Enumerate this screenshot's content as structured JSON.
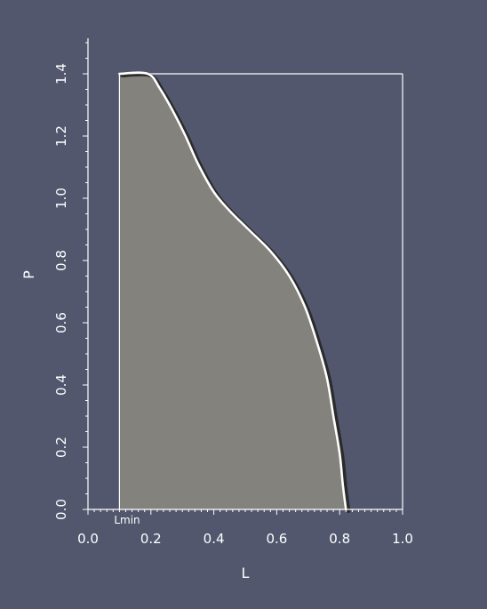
{
  "chart_data": {
    "type": "area",
    "xlabel": "L",
    "ylabel": "P",
    "xlim": [
      0.0,
      1.0
    ],
    "ylim": [
      0.0,
      1.5
    ],
    "x_ticks": [
      0.0,
      0.2,
      0.4,
      0.6,
      0.8,
      1.0
    ],
    "x_tick_labels": [
      "0.0",
      "0.2",
      "0.4",
      "0.6",
      "0.8",
      "1.0"
    ],
    "y_ticks": [
      0.0,
      0.2,
      0.4,
      0.6,
      0.8,
      1.0,
      1.2,
      1.4
    ],
    "y_tick_labels": [
      "0.0",
      "0.2",
      "0.4",
      "0.6",
      "0.8",
      "1.0",
      "1.2",
      "1.4"
    ],
    "annotation": "Lmin",
    "lmin": 0.1,
    "box": {
      "x": [
        0.1,
        1.0
      ],
      "y": [
        0.0,
        1.4
      ]
    },
    "curve": [
      {
        "x": 0.1,
        "y": 1.4
      },
      {
        "x": 0.19,
        "y": 1.4
      },
      {
        "x": 0.23,
        "y": 1.35
      },
      {
        "x": 0.27,
        "y": 1.28
      },
      {
        "x": 0.31,
        "y": 1.2
      },
      {
        "x": 0.35,
        "y": 1.11
      },
      {
        "x": 0.4,
        "y": 1.02
      },
      {
        "x": 0.45,
        "y": 0.96
      },
      {
        "x": 0.51,
        "y": 0.9
      },
      {
        "x": 0.58,
        "y": 0.83
      },
      {
        "x": 0.64,
        "y": 0.75
      },
      {
        "x": 0.69,
        "y": 0.65
      },
      {
        "x": 0.73,
        "y": 0.53
      },
      {
        "x": 0.76,
        "y": 0.42
      },
      {
        "x": 0.78,
        "y": 0.3
      },
      {
        "x": 0.8,
        "y": 0.18
      },
      {
        "x": 0.81,
        "y": 0.08
      },
      {
        "x": 0.82,
        "y": 0.0
      }
    ]
  },
  "colors": {
    "background": "#52576e",
    "fill": "#83827c",
    "curve": "#ffffff",
    "curve_shadow": "#2b2b2b",
    "axis": "#ffffff"
  }
}
